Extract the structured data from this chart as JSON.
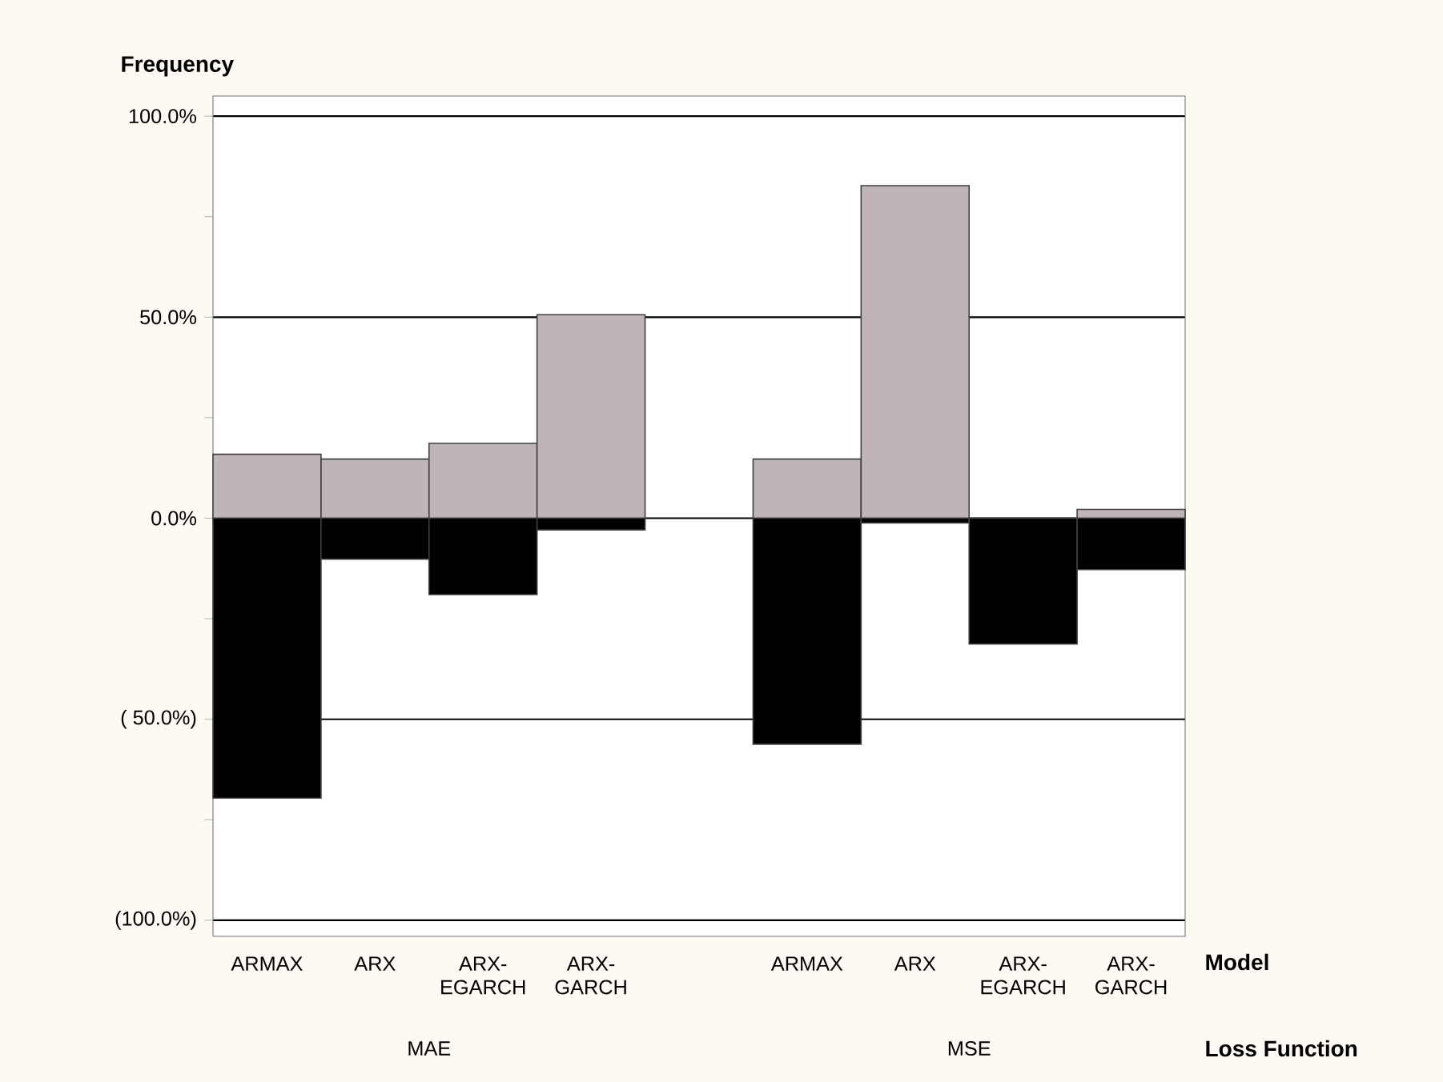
{
  "chart_data": {
    "type": "bar",
    "ylabel": "Frequency",
    "xlabel": "Model",
    "categories": [
      "ARMAX",
      "ARX",
      "ARX-EGARCH",
      "ARX-GARCH",
      null,
      "ARMAX",
      "ARX",
      "ARX-EGARCH",
      "ARX-GARCH"
    ],
    "series": [
      {
        "color": "#bfb5b6",
        "values": [
          15.9,
          14.7,
          18.6,
          50.6,
          null,
          14.7,
          82.7,
          0,
          2.2
        ]
      },
      {
        "color": "#000000",
        "values": [
          -69.6,
          -10.2,
          -19.0,
          -2.9,
          null,
          -56.2,
          -1.2,
          -31.3,
          -12.8
        ]
      }
    ],
    "stacked": true,
    "ylim": [
      -104,
      105
    ],
    "yticks": [
      {
        "value": -100,
        "label": "(100.0%)"
      },
      {
        "value": -75,
        "label": null
      },
      {
        "value": -50,
        "label": "( 50.0%)"
      },
      {
        "value": -25,
        "label": null
      },
      {
        "value": 0,
        "label": "0.0%"
      },
      {
        "value": 25,
        "label": null
      },
      {
        "value": 50,
        "label": "50.0%"
      },
      {
        "value": 75,
        "label": null
      },
      {
        "value": 100,
        "label": "100.0%"
      }
    ],
    "grid": "y",
    "annotations": [
      "Loss Function",
      "MAE",
      "MSE"
    ]
  }
}
